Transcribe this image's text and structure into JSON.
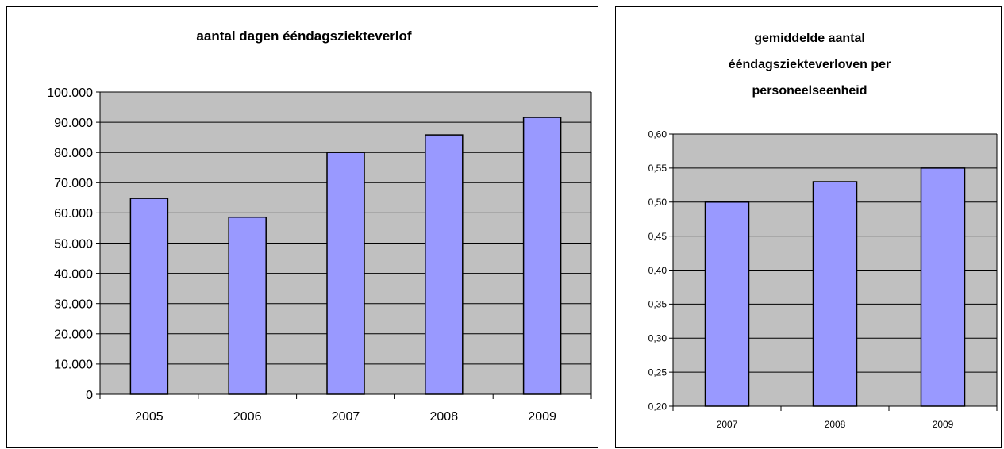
{
  "chart_data": [
    {
      "type": "bar",
      "title": "aantal dagen ééndagsziekteverlof",
      "categories": [
        "2005",
        "2006",
        "2007",
        "2008",
        "2009"
      ],
      "values": [
        64800,
        58600,
        80000,
        85800,
        91600
      ],
      "ylim": [
        0,
        100000
      ],
      "yticks": [
        "0",
        "10.000",
        "20.000",
        "30.000",
        "40.000",
        "50.000",
        "60.000",
        "70.000",
        "80.000",
        "90.000",
        "100.000"
      ],
      "xlabel": "",
      "ylabel": "",
      "grid": true,
      "legend": "none",
      "bar_color": "#9999ff",
      "plot_bg": "#c0c0c0"
    },
    {
      "type": "bar",
      "title_lines": [
        "gemiddelde aantal",
        "ééndagsziekteverloven per",
        "personeelseenheid"
      ],
      "categories": [
        "2007",
        "2008",
        "2009"
      ],
      "values": [
        0.5,
        0.53,
        0.55
      ],
      "ylim": [
        0.2,
        0.6
      ],
      "yticks": [
        "0,20",
        "0,25",
        "0,30",
        "0,35",
        "0,40",
        "0,45",
        "0,50",
        "0,55",
        "0,60"
      ],
      "xlabel": "",
      "ylabel": "",
      "grid": true,
      "legend": "none",
      "bar_color": "#9999ff",
      "plot_bg": "#c0c0c0"
    }
  ]
}
